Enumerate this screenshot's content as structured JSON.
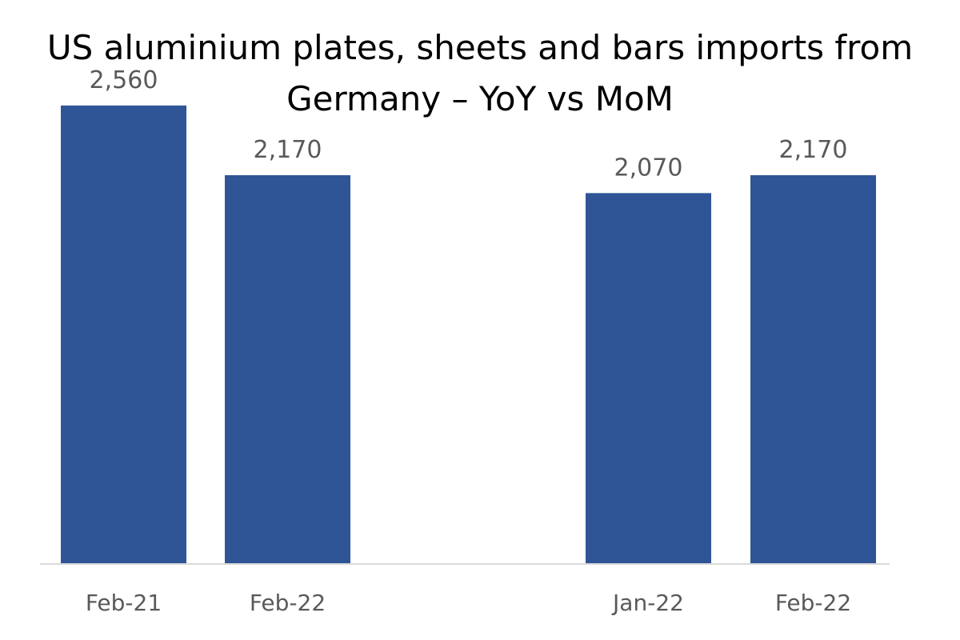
{
  "chart_data": {
    "type": "bar",
    "title_line1": "US aluminium plates, sheets and bars imports from",
    "title_line2": "Germany – YoY vs MoM",
    "xlabel": "",
    "ylabel": "",
    "categories": [
      "Feb-21",
      "Feb-22",
      "Jan-22",
      "Feb-22"
    ],
    "values": [
      2560,
      2170,
      2070,
      2170
    ],
    "data_labels": [
      "2,560",
      "2,170",
      "2,070",
      "2,170"
    ],
    "groups": [
      [
        0,
        1
      ],
      [
        2,
        3
      ]
    ],
    "ylim": [
      0,
      3150
    ],
    "grid": false,
    "legend": "none",
    "bar_color": "#2F5597",
    "axis_color": "#D9D9D9",
    "label_color": "#595959"
  }
}
